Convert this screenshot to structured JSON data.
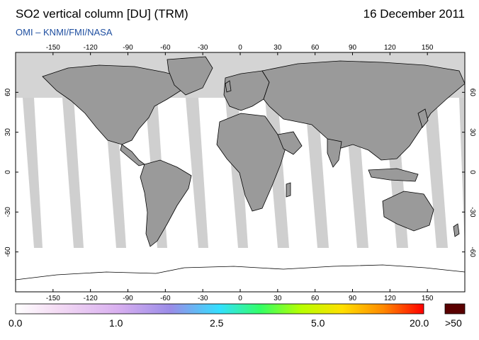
{
  "header": {
    "title": "SO2 vertical column [DU] (TRM)",
    "date": "16 December 2011",
    "credit": "OMI  –  KNMI/FMI/NASA"
  },
  "map": {
    "lon_ticks": [
      "-150",
      "-120",
      "-90",
      "-60",
      "-30",
      "0",
      "30",
      "60",
      "90",
      "120",
      "150"
    ],
    "lat_ticks": [
      "60",
      "30",
      "0",
      "-30",
      "-60"
    ],
    "colors": {
      "land": "#9a9a9a",
      "polar_night": "#d4d4d4",
      "orbit_gap": "#cfcfcf",
      "background": "#ffffff",
      "coast": "#000000"
    }
  },
  "colorbar": {
    "labels": [
      "0.0",
      "1.0",
      "2.5",
      "5.0",
      "20.0"
    ],
    "overflow_label": ">50",
    "stops": [
      "#ffffff",
      "#f4dcf4",
      "#d9b0f0",
      "#9a8ce8",
      "#33e0ff",
      "#33ff66",
      "#b8ff00",
      "#ffe000",
      "#ff8a00",
      "#ff0000"
    ],
    "overflow_color": "#5a0000"
  }
}
